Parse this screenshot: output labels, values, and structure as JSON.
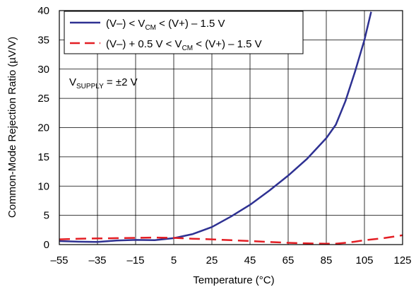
{
  "chart_data": {
    "type": "line",
    "title": "",
    "xlabel": "Temperature (°C)",
    "ylabel": "Common-Mode Rejection Ratio (µV/V)",
    "xlim": [
      -55,
      125
    ],
    "ylim": [
      0,
      40
    ],
    "xticks": [
      -55,
      -35,
      -15,
      5,
      25,
      45,
      65,
      85,
      105,
      125
    ],
    "yticks": [
      0,
      5,
      10,
      15,
      20,
      25,
      30,
      35,
      40
    ],
    "grid": true,
    "legend_position": "top-left",
    "annotation": {
      "base": "V",
      "sub": "SUPPLY",
      "rest": " = ±2 V"
    },
    "series": [
      {
        "name": "(V–) < VCM < (V+) – 1.5 V",
        "legend": {
          "pre": "(V–) < V",
          "sub": "CM",
          "post": " < (V+) – 1.5 V"
        },
        "color": "#2e3192",
        "dash": "solid",
        "x": [
          -55,
          -45,
          -35,
          -25,
          -15,
          -5,
          5,
          15,
          25,
          35,
          45,
          55,
          65,
          75,
          85,
          90,
          95,
          100,
          105,
          108.5
        ],
        "y": [
          0.6,
          0.5,
          0.45,
          0.7,
          0.8,
          0.75,
          1.1,
          1.8,
          3.0,
          4.8,
          6.8,
          9.2,
          11.8,
          14.7,
          18.2,
          20.5,
          24.5,
          29.5,
          35,
          39.8
        ]
      },
      {
        "name": "(V–) + 0.5 V < VCM < (V+) – 1.5 V",
        "legend": {
          "pre": "(V–) + 0.5 V < V",
          "sub": "CM",
          "post": " < (V+) – 1.5 V"
        },
        "color": "#e31e24",
        "dash": "dashed",
        "x": [
          -55,
          -45,
          -35,
          -25,
          -15,
          -5,
          5,
          15,
          25,
          35,
          45,
          55,
          65,
          75,
          85,
          90,
          95,
          100,
          105,
          115,
          125
        ],
        "y": [
          0.9,
          1.0,
          1.05,
          1.1,
          1.15,
          1.2,
          1.15,
          1.0,
          0.9,
          0.75,
          0.6,
          0.45,
          0.3,
          0.2,
          0.15,
          0.15,
          0.3,
          0.5,
          0.75,
          1.1,
          1.6
        ]
      }
    ]
  }
}
